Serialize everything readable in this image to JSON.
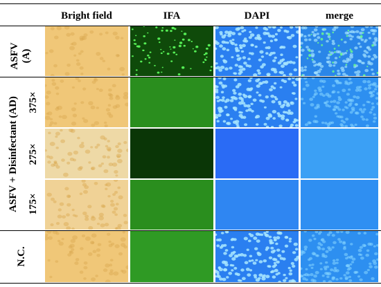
{
  "columns": [
    "Bright field",
    "IFA",
    "DAPI",
    "merge"
  ],
  "rows": {
    "asfv": {
      "label_line1": "ASFV",
      "label_line2": "(A)"
    },
    "group": {
      "label": "ASFV + Disinfectant (AD)",
      "dilutions": [
        "375×",
        "275×",
        "175×"
      ]
    },
    "nc": {
      "label": "N.C."
    }
  },
  "colors": {
    "bright": "#f0c778",
    "ifa_dim": "#2a8e1e",
    "ifa_dark": "#0a3606",
    "dapi": "#2a7ff0",
    "merge": "#2d8ff0",
    "nucleus": "#a8e6ff"
  }
}
